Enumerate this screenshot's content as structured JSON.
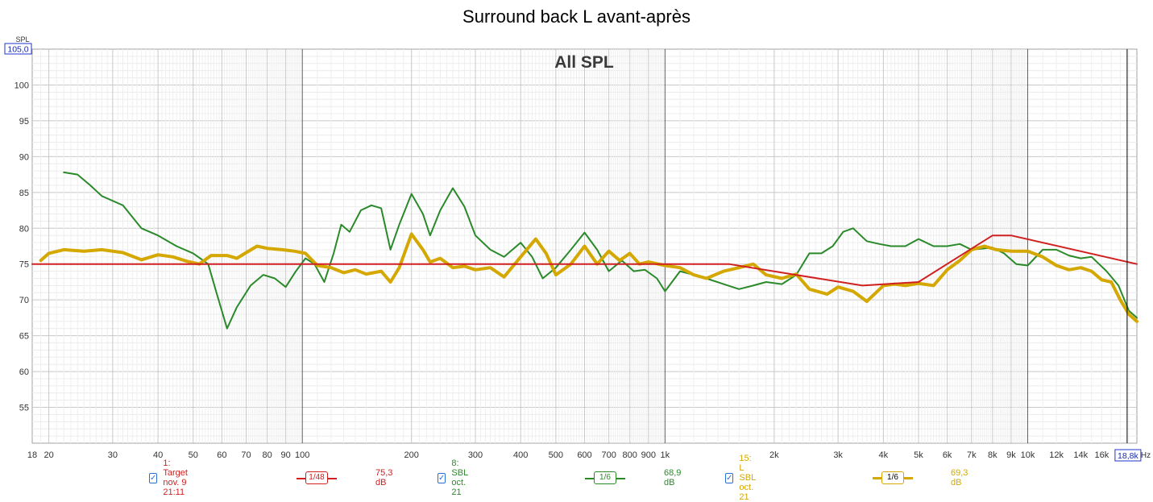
{
  "title": "Surround back L avant-après",
  "chart_data": {
    "type": "line",
    "inner_title": "All SPL",
    "ylabel": "SPL",
    "xlabel_unit": "Hz",
    "x_scale": "log",
    "xlim": [
      18,
      20000
    ],
    "ylim": [
      50,
      105
    ],
    "y_top_readout": "105,0",
    "x_cursor_readout": "18,8k",
    "y_ticks": [
      55,
      60,
      65,
      70,
      75,
      80,
      85,
      90,
      95,
      100
    ],
    "x_ticks": [
      {
        "v": 18,
        "label": "18"
      },
      {
        "v": 20,
        "label": "20"
      },
      {
        "v": 30,
        "label": "30"
      },
      {
        "v": 40,
        "label": "40"
      },
      {
        "v": 50,
        "label": "50"
      },
      {
        "v": 60,
        "label": "60"
      },
      {
        "v": 70,
        "label": "70"
      },
      {
        "v": 80,
        "label": "80"
      },
      {
        "v": 90,
        "label": "90"
      },
      {
        "v": 100,
        "label": "100"
      },
      {
        "v": 200,
        "label": "200"
      },
      {
        "v": 300,
        "label": "300"
      },
      {
        "v": 400,
        "label": "400"
      },
      {
        "v": 500,
        "label": "500"
      },
      {
        "v": 600,
        "label": "600"
      },
      {
        "v": 700,
        "label": "700"
      },
      {
        "v": 800,
        "label": "800"
      },
      {
        "v": 900,
        "label": "900"
      },
      {
        "v": 1000,
        "label": "1k"
      },
      {
        "v": 2000,
        "label": "2k"
      },
      {
        "v": 3000,
        "label": "3k"
      },
      {
        "v": 4000,
        "label": "4k"
      },
      {
        "v": 5000,
        "label": "5k"
      },
      {
        "v": 6000,
        "label": "6k"
      },
      {
        "v": 7000,
        "label": "7k"
      },
      {
        "v": 8000,
        "label": "8k"
      },
      {
        "v": 9000,
        "label": "9k"
      },
      {
        "v": 10000,
        "label": "10k"
      },
      {
        "v": 12000,
        "label": "12k"
      },
      {
        "v": 14000,
        "label": "14k"
      },
      {
        "v": 16000,
        "label": "16k"
      }
    ],
    "grid": true,
    "series": [
      {
        "name": "1: Target nov. 9 21:11",
        "smoothing": "1/48",
        "level": "75,3 dB",
        "color": "#d02020",
        "width": 2,
        "points": [
          [
            18,
            75
          ],
          [
            1500,
            75
          ],
          [
            3500,
            72
          ],
          [
            5000,
            72.5
          ],
          [
            8000,
            79
          ],
          [
            9000,
            79
          ],
          [
            20000,
            75
          ]
        ]
      },
      {
        "name": "8: SBL oct. 21",
        "smoothing": "1/6",
        "level": "68,9 dB",
        "color": "#2a8a2a",
        "width": 2,
        "points": [
          [
            22,
            87.8
          ],
          [
            24,
            87.5
          ],
          [
            26,
            86
          ],
          [
            28,
            84.5
          ],
          [
            32,
            83.2
          ],
          [
            36,
            80
          ],
          [
            40,
            79
          ],
          [
            45,
            77.5
          ],
          [
            50,
            76.5
          ],
          [
            55,
            75
          ],
          [
            58,
            71
          ],
          [
            62,
            66
          ],
          [
            66,
            69
          ],
          [
            72,
            72
          ],
          [
            78,
            73.5
          ],
          [
            84,
            73
          ],
          [
            90,
            71.8
          ],
          [
            96,
            74
          ],
          [
            102,
            75.8
          ],
          [
            108,
            75
          ],
          [
            115,
            72.5
          ],
          [
            122,
            76.5
          ],
          [
            128,
            80.5
          ],
          [
            135,
            79.5
          ],
          [
            145,
            82.5
          ],
          [
            155,
            83.2
          ],
          [
            165,
            82.8
          ],
          [
            175,
            77
          ],
          [
            185,
            80.5
          ],
          [
            200,
            84.8
          ],
          [
            215,
            82
          ],
          [
            225,
            79
          ],
          [
            240,
            82.5
          ],
          [
            260,
            85.6
          ],
          [
            280,
            83
          ],
          [
            300,
            79
          ],
          [
            330,
            77
          ],
          [
            360,
            76
          ],
          [
            400,
            78
          ],
          [
            430,
            76
          ],
          [
            460,
            73
          ],
          [
            500,
            74.5
          ],
          [
            550,
            77
          ],
          [
            600,
            79.4
          ],
          [
            650,
            77
          ],
          [
            700,
            74
          ],
          [
            760,
            75.5
          ],
          [
            820,
            74
          ],
          [
            880,
            74.2
          ],
          [
            950,
            73
          ],
          [
            1000,
            71.2
          ],
          [
            1100,
            74
          ],
          [
            1200,
            73.5
          ],
          [
            1300,
            73
          ],
          [
            1450,
            72.2
          ],
          [
            1600,
            71.5
          ],
          [
            1750,
            72
          ],
          [
            1900,
            72.5
          ],
          [
            2100,
            72.2
          ],
          [
            2300,
            73.5
          ],
          [
            2500,
            76.5
          ],
          [
            2700,
            76.5
          ],
          [
            2900,
            77.5
          ],
          [
            3100,
            79.5
          ],
          [
            3300,
            80
          ],
          [
            3600,
            78.2
          ],
          [
            3900,
            77.8
          ],
          [
            4200,
            77.5
          ],
          [
            4600,
            77.5
          ],
          [
            5000,
            78.5
          ],
          [
            5500,
            77.5
          ],
          [
            6000,
            77.5
          ],
          [
            6500,
            77.8
          ],
          [
            7000,
            77
          ],
          [
            7600,
            77.2
          ],
          [
            8000,
            77.3
          ],
          [
            8600,
            76.5
          ],
          [
            9300,
            75
          ],
          [
            10000,
            74.8
          ],
          [
            11000,
            77
          ],
          [
            12000,
            77
          ],
          [
            13000,
            76.2
          ],
          [
            14000,
            75.8
          ],
          [
            15000,
            76
          ],
          [
            16500,
            74
          ],
          [
            17800,
            72
          ],
          [
            19000,
            68.5
          ],
          [
            20000,
            67.5
          ]
        ]
      },
      {
        "name": "15: L SBL oct. 21",
        "smoothing": "1/6",
        "level": "69,3 dB",
        "color": "#d4a800",
        "width": 4,
        "points": [
          [
            19,
            75.5
          ],
          [
            20,
            76.5
          ],
          [
            22,
            77
          ],
          [
            25,
            76.8
          ],
          [
            28,
            77
          ],
          [
            32,
            76.6
          ],
          [
            36,
            75.6
          ],
          [
            40,
            76.3
          ],
          [
            44,
            76
          ],
          [
            48,
            75.4
          ],
          [
            52,
            75
          ],
          [
            56,
            76.2
          ],
          [
            62,
            76.2
          ],
          [
            66,
            75.8
          ],
          [
            70,
            76.6
          ],
          [
            75,
            77.5
          ],
          [
            80,
            77.2
          ],
          [
            88,
            77
          ],
          [
            95,
            76.8
          ],
          [
            102,
            76.5
          ],
          [
            110,
            74.8
          ],
          [
            120,
            74.5
          ],
          [
            130,
            73.8
          ],
          [
            140,
            74.2
          ],
          [
            150,
            73.6
          ],
          [
            165,
            74
          ],
          [
            175,
            72.5
          ],
          [
            185,
            74.5
          ],
          [
            200,
            79.2
          ],
          [
            215,
            77
          ],
          [
            225,
            75.3
          ],
          [
            240,
            75.8
          ],
          [
            260,
            74.5
          ],
          [
            280,
            74.7
          ],
          [
            300,
            74.2
          ],
          [
            330,
            74.5
          ],
          [
            360,
            73.2
          ],
          [
            400,
            76
          ],
          [
            440,
            78.5
          ],
          [
            470,
            76.5
          ],
          [
            500,
            73.5
          ],
          [
            550,
            75
          ],
          [
            600,
            77.5
          ],
          [
            650,
            75
          ],
          [
            700,
            76.8
          ],
          [
            750,
            75.5
          ],
          [
            800,
            76.5
          ],
          [
            850,
            75
          ],
          [
            900,
            75.3
          ],
          [
            1000,
            74.8
          ],
          [
            1100,
            74.5
          ],
          [
            1200,
            73.5
          ],
          [
            1300,
            73
          ],
          [
            1450,
            74
          ],
          [
            1600,
            74.5
          ],
          [
            1750,
            75
          ],
          [
            1900,
            73.5
          ],
          [
            2100,
            73
          ],
          [
            2300,
            73.6
          ],
          [
            2500,
            71.5
          ],
          [
            2800,
            70.8
          ],
          [
            3000,
            71.8
          ],
          [
            3300,
            71.2
          ],
          [
            3600,
            69.8
          ],
          [
            4000,
            72
          ],
          [
            4300,
            72.2
          ],
          [
            4600,
            72
          ],
          [
            5000,
            72.3
          ],
          [
            5500,
            72
          ],
          [
            6000,
            74.2
          ],
          [
            6500,
            75.5
          ],
          [
            7000,
            77
          ],
          [
            7600,
            77.5
          ],
          [
            8200,
            77
          ],
          [
            9000,
            76.8
          ],
          [
            10000,
            76.8
          ],
          [
            11000,
            76
          ],
          [
            12000,
            74.8
          ],
          [
            13000,
            74.2
          ],
          [
            14000,
            74.5
          ],
          [
            15000,
            74
          ],
          [
            16000,
            72.8
          ],
          [
            17000,
            72.5
          ],
          [
            18000,
            70
          ],
          [
            19000,
            68
          ],
          [
            20000,
            67
          ]
        ]
      }
    ]
  }
}
